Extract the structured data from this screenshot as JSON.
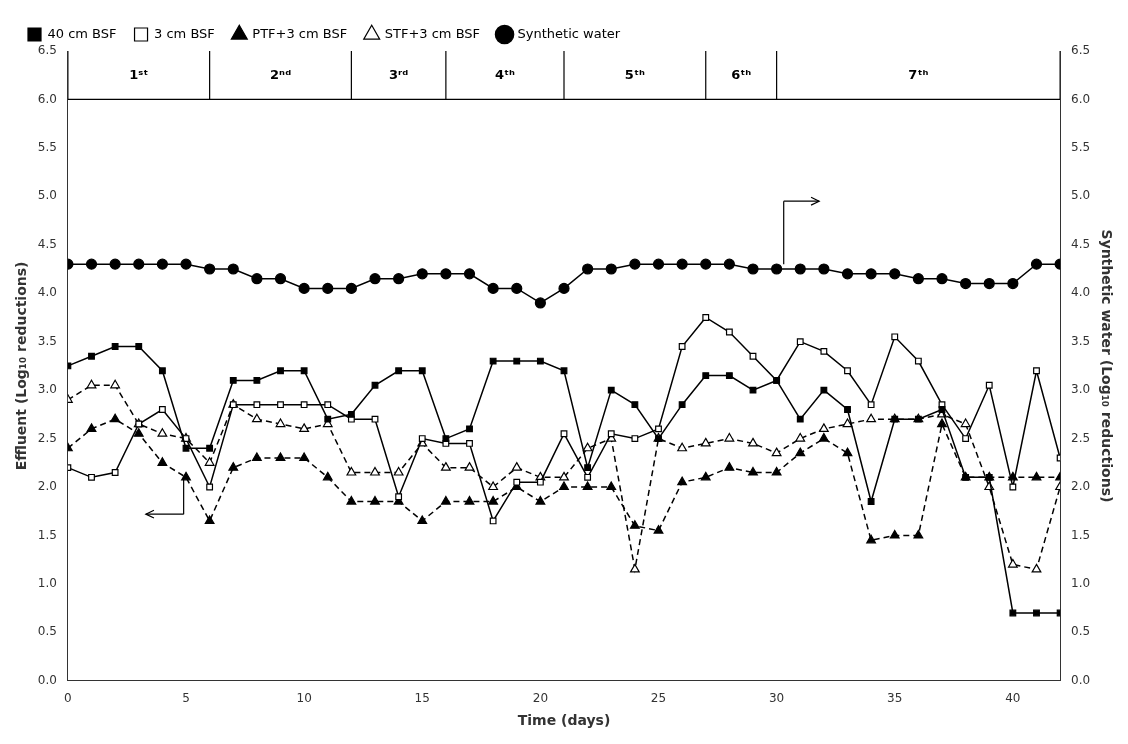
{
  "chart_data": {
    "type": "line",
    "xlabel": "Time (days)",
    "ylabel": "Effluent (Log₁₀ reductions)",
    "y2label": "Synthetic water (Log₁₀ reductions)",
    "x": [
      0,
      1,
      2,
      3,
      4,
      5,
      6,
      7,
      8,
      9,
      10,
      11,
      12,
      13,
      14,
      15,
      16,
      17,
      18,
      19,
      20,
      21,
      22,
      23,
      24,
      25,
      26,
      27,
      28,
      29,
      30,
      31,
      32,
      33,
      34,
      35,
      36,
      37,
      38,
      39,
      40,
      41,
      42
    ],
    "xlim": [
      0,
      42
    ],
    "xticks": [
      0,
      5,
      10,
      15,
      20,
      25,
      30,
      35,
      40
    ],
    "ylim": [
      0.0,
      6.5
    ],
    "yticks": [
      {
        "value": 0.0,
        "label": "0.0"
      },
      0.5,
      {
        "value": 1.0,
        "label": "1.0"
      },
      1.5,
      {
        "value": 2.0,
        "label": "2.0"
      },
      2.5,
      {
        "value": 3.0,
        "label": "3.0"
      },
      3.5,
      {
        "value": 4.0,
        "label": "4.0"
      },
      4.5,
      {
        "value": 5.0,
        "label": "5.0"
      },
      5.5,
      {
        "value": 6.0,
        "label": "6.0"
      },
      6.5
    ],
    "y2lim": [
      0.0,
      6.5
    ],
    "y2ticks": [
      {
        "value": 0.0,
        "label": "0.0"
      },
      0.5,
      {
        "value": 1.0,
        "label": "1.0"
      },
      1.5,
      {
        "value": 2.0,
        "label": "2.0"
      },
      2.5,
      {
        "value": 3.0,
        "label": "3.0"
      },
      3.5,
      {
        "value": 4.0,
        "label": "4.0"
      },
      4.5,
      {
        "value": 5.0,
        "label": "5.0"
      },
      5.5,
      {
        "value": 6.0,
        "label": "6.0"
      },
      6.5
    ],
    "grid": false,
    "legend": "upper left",
    "series": [
      {
        "name": "40 cm BSF",
        "color": "black",
        "marker": "square",
        "line_style": "solid",
        "values": [
          3.25,
          3.35,
          3.45,
          3.45,
          3.2,
          2.4,
          2.4,
          3.1,
          3.1,
          3.2,
          3.2,
          2.7,
          2.75,
          3.05,
          3.2,
          3.2,
          2.5,
          2.6,
          3.3,
          3.3,
          3.3,
          3.2,
          2.2,
          3.0,
          2.85,
          2.5,
          2.85,
          3.15,
          3.15,
          3.0,
          3.1,
          2.7,
          3.0,
          2.8,
          1.85,
          2.7,
          2.7,
          2.8,
          2.1,
          2.1,
          0.7,
          0.7,
          0.7
        ]
      },
      {
        "name": "3 cm BSF",
        "color": "black",
        "marker": "square-open",
        "line_style": "solid",
        "values": [
          2.2,
          2.1,
          2.15,
          2.65,
          2.8,
          2.5,
          2.0,
          2.85,
          2.85,
          2.85,
          2.85,
          2.85,
          2.7,
          2.7,
          1.9,
          2.5,
          2.45,
          2.45,
          1.65,
          2.05,
          2.05,
          2.55,
          2.1,
          2.55,
          2.5,
          2.6,
          3.45,
          3.75,
          3.6,
          3.35,
          3.1,
          3.5,
          3.4,
          3.2,
          2.85,
          3.55,
          3.3,
          2.85,
          2.5,
          3.05,
          2.0,
          3.2,
          2.3
        ]
      },
      {
        "name": "PTF+3 cm BSF",
        "color": "black",
        "marker": "triangle",
        "line_style": "dashed",
        "values": [
          2.4,
          2.6,
          2.7,
          2.55,
          2.25,
          2.1,
          1.65,
          2.2,
          2.3,
          2.3,
          2.3,
          2.1,
          1.85,
          1.85,
          1.85,
          1.65,
          1.85,
          1.85,
          1.85,
          2.0,
          1.85,
          2.0,
          2.0,
          2.0,
          1.6,
          1.55,
          2.05,
          2.1,
          2.2,
          2.15,
          2.15,
          2.35,
          2.5,
          2.35,
          1.45,
          1.5,
          1.5,
          2.65,
          2.1,
          2.1,
          2.1,
          2.1,
          2.1
        ]
      },
      {
        "name": "STF+3 cm BSF",
        "color": "black",
        "marker": "triangle-open",
        "line_style": "dashed",
        "values": [
          2.9,
          3.05,
          3.05,
          2.65,
          2.55,
          2.5,
          2.25,
          2.85,
          2.7,
          2.65,
          2.6,
          2.65,
          2.15,
          2.15,
          2.15,
          2.45,
          2.2,
          2.2,
          2.0,
          2.2,
          2.1,
          2.1,
          2.4,
          2.5,
          1.15,
          2.5,
          2.4,
          2.45,
          2.5,
          2.45,
          2.35,
          2.5,
          2.6,
          2.65,
          2.7,
          2.7,
          2.7,
          2.75,
          2.65,
          2.0,
          1.2,
          1.15,
          2.0
        ]
      },
      {
        "name": "Synthetic water",
        "color": "black",
        "marker": "circle",
        "line_style": "solid",
        "axis": "y2",
        "values": [
          4.3,
          4.3,
          4.3,
          4.3,
          4.3,
          4.3,
          4.25,
          4.25,
          4.15,
          4.15,
          4.05,
          4.05,
          4.05,
          4.15,
          4.15,
          4.2,
          4.2,
          4.2,
          4.05,
          4.05,
          3.9,
          4.05,
          4.25,
          4.25,
          4.3,
          4.3,
          4.3,
          4.3,
          4.3,
          4.25,
          4.25,
          4.25,
          4.25,
          4.2,
          4.2,
          4.2,
          4.15,
          4.15,
          4.1,
          4.1,
          4.1,
          4.3,
          4.3
        ]
      }
    ],
    "phases": {
      "bottom": 6.0,
      "boundaries": [
        0,
        6,
        12,
        16,
        21,
        27,
        30,
        42
      ],
      "labels": [
        "1ˢᵗ",
        "2ⁿᵈ",
        "3ʳᵈ",
        "4ᵗʰ",
        "5ᵗʰ",
        "6ᵗʰ",
        "7ᵗʰ"
      ]
    },
    "arrows": [
      {
        "from": [
          4.9,
          1.72
        ],
        "to": [
          3.3,
          1.72
        ],
        "stem": {
          "x": 4.9,
          "y": [
            1.72,
            2.1
          ]
        }
      },
      {
        "from": [
          30.3,
          4.95
        ],
        "to": [
          31.8,
          4.95
        ],
        "stem": {
          "x": 30.3,
          "y": [
            4.3,
            4.95
          ]
        }
      }
    ]
  }
}
